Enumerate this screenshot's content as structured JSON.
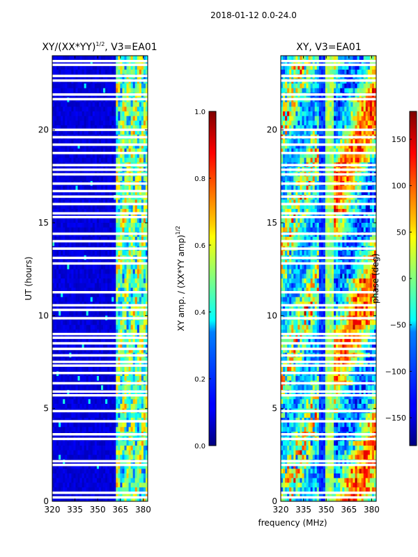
{
  "chart_data": [
    {
      "type": "heatmap",
      "suptitle": "2018-01-12 0.0-24.0",
      "title": "XY/(XX*YY)",
      "title_exponent": "1/2",
      "title_suffix": ", V3=EA01",
      "xlabel": "",
      "ylabel": "UT (hours)",
      "xlim": [
        320,
        383
      ],
      "ylim": [
        0,
        24
      ],
      "x_ticks": [
        320,
        335,
        350,
        365,
        380
      ],
      "y_ticks": [
        0,
        5,
        10,
        15,
        20
      ],
      "colormap": "jet",
      "colorbar": {
        "label": "XY amp. / (XX*YY amp)",
        "label_exponent": "1/2",
        "range": [
          0.0,
          1.0
        ],
        "ticks": [
          0.0,
          0.2,
          0.4,
          0.6,
          0.8,
          1.0
        ],
        "tick_labels": [
          "0.0",
          "0.2",
          "0.4",
          "0.6",
          "0.8",
          "1.0"
        ]
      },
      "flagged_rows_ut": [
        0.2,
        0.45,
        1.95,
        2.15,
        3.35,
        3.6,
        4.3,
        4.85,
        5.7,
        5.9,
        6.35,
        6.9,
        7.3,
        7.5,
        7.85,
        8.2,
        8.5,
        8.8,
        9.0,
        9.85,
        10.3,
        10.55,
        11.25,
        12.8,
        13.1,
        13.6,
        14.0,
        14.4,
        15.3,
        15.5,
        16.0,
        16.4,
        16.7,
        17.1,
        17.6,
        17.85,
        18.1,
        18.75,
        19.2,
        19.6,
        20.0,
        21.65,
        21.9,
        22.65,
        22.9,
        23.5,
        23.7
      ],
      "summary": [
        {
          "band_mhz": "320-362",
          "level": 0.08
        },
        {
          "band_mhz": "362-383",
          "level": 0.45
        }
      ]
    },
    {
      "type": "heatmap",
      "title": "XY, V3=EA01",
      "xlabel": "frequency (MHz)",
      "ylabel": "",
      "xlim": [
        320,
        383
      ],
      "ylim": [
        0,
        24
      ],
      "x_ticks": [
        320,
        335,
        350,
        365,
        380
      ],
      "y_ticks": [
        0,
        5,
        10,
        15,
        20
      ],
      "colormap": "jet",
      "colorbar": {
        "label": "phase (deg)",
        "range": [
          -180,
          180
        ],
        "ticks": [
          -150,
          -100,
          -50,
          0,
          50,
          100,
          150
        ],
        "tick_labels": [
          "−150",
          "−100",
          "−50",
          "0",
          "50",
          "100",
          "150"
        ]
      },
      "flagged_rows_ut": [
        0.2,
        0.45,
        1.95,
        2.15,
        3.35,
        3.6,
        4.3,
        4.85,
        5.7,
        5.9,
        6.35,
        6.9,
        7.3,
        7.5,
        7.85,
        8.2,
        8.5,
        8.8,
        9.0,
        9.85,
        10.3,
        10.55,
        11.25,
        12.8,
        13.1,
        13.6,
        14.0,
        14.4,
        15.3,
        15.5,
        16.0,
        16.4,
        16.7,
        17.1,
        17.6,
        17.85,
        18.1,
        18.75,
        19.2,
        19.6,
        20.0,
        21.65,
        21.9,
        22.65,
        22.9,
        23.5,
        23.7
      ],
      "summary": [
        {
          "band_mhz": "345-350",
          "phase_deg": -140
        },
        {
          "band_mhz": "350-355",
          "phase_deg": 10
        }
      ]
    }
  ]
}
